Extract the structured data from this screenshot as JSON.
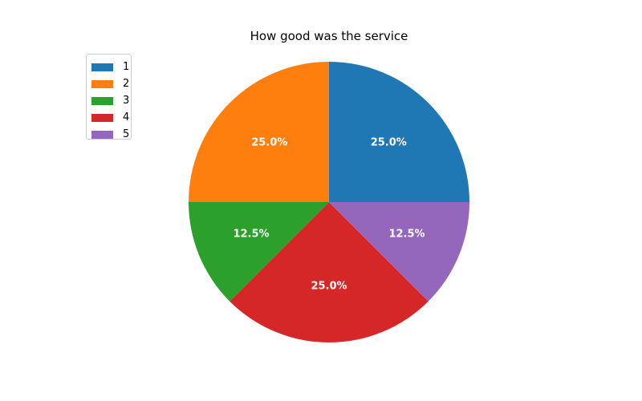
{
  "chart_data": {
    "type": "pie",
    "title": "How good was the service",
    "categories": [
      "1",
      "2",
      "3",
      "4",
      "5"
    ],
    "values": [
      25.0,
      25.0,
      12.5,
      25.0,
      12.5
    ],
    "labels": [
      "25.0%",
      "25.0%",
      "12.5%",
      "25.0%",
      "12.5%"
    ],
    "colors": [
      "#1f77b4",
      "#ff7f0e",
      "#2ca02c",
      "#d62728",
      "#9467bd"
    ],
    "start_angle_deg": 0,
    "direction": "counterclockwise",
    "legend_placement": "upper-left"
  }
}
